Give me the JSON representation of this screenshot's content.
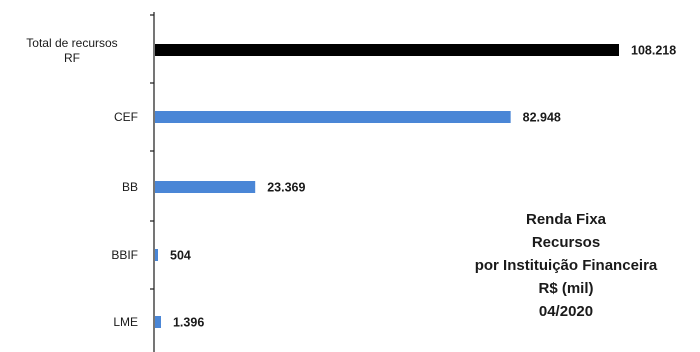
{
  "chart_data": {
    "type": "bar",
    "orientation": "horizontal",
    "categories": [
      [
        "Total de recursos",
        "RF"
      ],
      [
        "CEF"
      ],
      [
        "BB"
      ],
      [
        "BBIF"
      ],
      [
        "LME"
      ]
    ],
    "values": [
      108218,
      82948,
      23369,
      504,
      1396
    ],
    "value_labels": [
      "108.218",
      "82.948",
      "23.369",
      "504",
      "1.396"
    ],
    "bar_colors": [
      "#000000",
      "#4a86d6",
      "#4a86d6",
      "#4a86d6",
      "#4a86d6"
    ],
    "xlim": [
      0,
      110000
    ],
    "title_lines": [
      "Renda Fixa",
      "Recursos",
      "por Instituição Financeira",
      "R$ (mil)",
      "04/2020"
    ],
    "grid": false,
    "legend": "none"
  }
}
